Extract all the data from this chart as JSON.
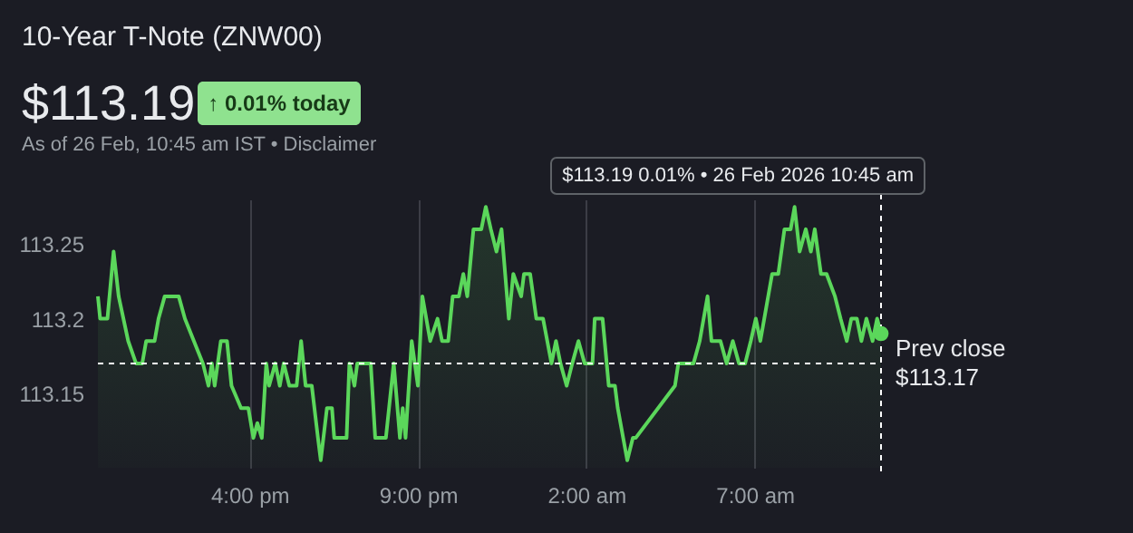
{
  "chart_data": {
    "type": "area",
    "title": "10-Year T-Note (ZNW00)",
    "subtitle": "$113.19",
    "color": "#5bd75b",
    "annotations": [
      "↑ 0.01% today",
      "As of 26 Feb, 10:45 am IST • Disclaimer",
      "$113.19 0.01% • 26 Feb 2026 10:45 am"
    ],
    "x": [
      "2026-02-25T11:30",
      "2026-02-25T11:34",
      "2026-02-25T11:47",
      "2026-02-25T11:58",
      "2026-02-25T12:07",
      "2026-02-25T12:24",
      "2026-02-25T12:38",
      "2026-02-25T12:49",
      "2026-02-25T12:56",
      "2026-02-25T13:11",
      "2026-02-25T13:18",
      "2026-02-25T13:29",
      "2026-02-25T13:54",
      "2026-02-25T14:05",
      "2026-02-25T14:21",
      "2026-02-25T14:37",
      "2026-02-25T14:47",
      "2026-02-25T14:53",
      "2026-02-25T14:58",
      "2026-02-25T15:09",
      "2026-02-25T15:20",
      "2026-02-25T15:28",
      "2026-02-25T15:45",
      "2026-02-25T15:58",
      "2026-02-25T16:07",
      "2026-02-25T16:14",
      "2026-02-25T16:22",
      "2026-02-25T16:30",
      "2026-02-25T16:35",
      "2026-02-25T16:46",
      "2026-02-25T16:54",
      "2026-02-25T17:01",
      "2026-02-25T17:11",
      "2026-02-25T17:24",
      "2026-02-25T17:32",
      "2026-02-25T17:40",
      "2026-02-25T17:51",
      "2026-02-25T18:02",
      "2026-02-25T18:07",
      "2026-02-25T18:18",
      "2026-02-25T18:27",
      "2026-02-25T18:31",
      "2026-02-25T18:53",
      "2026-02-25T18:58",
      "2026-02-25T19:07",
      "2026-02-25T19:12",
      "2026-02-25T19:23",
      "2026-02-25T19:36",
      "2026-02-25T19:44",
      "2026-02-25T20:03",
      "2026-02-25T20:17",
      "2026-02-25T20:28",
      "2026-02-25T20:33",
      "2026-02-25T20:38",
      "2026-02-25T20:49",
      "2026-02-25T21:00",
      "2026-02-25T21:08",
      "2026-02-25T21:22",
      "2026-02-25T21:35",
      "2026-02-25T21:43",
      "2026-02-25T21:54",
      "2026-02-25T22:02",
      "2026-02-25T22:13",
      "2026-02-25T22:21",
      "2026-02-25T22:28",
      "2026-02-25T22:39",
      "2026-02-25T22:53",
      "2026-02-25T23:01",
      "2026-02-25T23:10",
      "2026-02-25T23:20",
      "2026-02-25T23:29",
      "2026-02-25T23:42",
      "2026-02-25T23:50",
      "2026-02-26T00:04",
      "2026-02-26T00:09",
      "2026-02-26T00:20",
      "2026-02-26T00:31",
      "2026-02-26T00:43",
      "2026-02-26T00:58",
      "2026-02-26T01:06",
      "2026-02-26T01:14",
      "2026-02-26T01:25",
      "2026-02-26T01:35",
      "2026-02-26T01:46",
      "2026-02-26T01:57",
      "2026-02-26T02:11",
      "2026-02-26T02:15",
      "2026-02-26T02:29",
      "2026-02-26T02:40",
      "2026-02-26T02:51",
      "2026-02-26T02:56",
      "2026-02-26T03:13",
      "2026-02-26T03:23",
      "2026-02-26T03:28",
      "2026-02-26T04:38",
      "2026-02-26T04:44",
      "2026-02-26T05:11",
      "2026-02-26T05:22",
      "2026-02-26T05:36",
      "2026-02-26T05:43",
      "2026-02-26T05:59",
      "2026-02-26T06:10",
      "2026-02-26T06:21",
      "2026-02-26T06:32",
      "2026-02-26T06:43",
      "2026-02-26T06:53",
      "2026-02-26T07:02",
      "2026-02-26T07:10",
      "2026-02-26T07:17",
      "2026-02-26T07:31",
      "2026-02-26T07:42",
      "2026-02-26T07:53",
      "2026-02-26T08:04",
      "2026-02-26T08:11",
      "2026-02-26T08:20",
      "2026-02-26T08:31",
      "2026-02-26T08:40",
      "2026-02-26T08:47",
      "2026-02-26T08:58",
      "2026-02-26T09:08",
      "2026-02-26T09:23",
      "2026-02-26T09:33",
      "2026-02-26T09:44",
      "2026-02-26T09:52",
      "2026-02-26T10:02",
      "2026-02-26T10:10",
      "2026-02-26T10:19",
      "2026-02-26T10:30",
      "2026-02-26T10:38",
      "2026-02-26T10:45"
    ],
    "values": [
      113.215,
      113.2,
      113.2,
      113.245,
      113.215,
      113.185,
      113.17,
      113.17,
      113.185,
      113.185,
      113.2,
      113.215,
      113.215,
      113.2,
      113.185,
      113.17,
      113.155,
      113.17,
      113.155,
      113.185,
      113.185,
      113.155,
      113.14,
      113.14,
      113.12,
      113.13,
      113.12,
      113.17,
      113.155,
      113.17,
      113.155,
      113.17,
      113.155,
      113.155,
      113.185,
      113.155,
      113.155,
      113.12,
      113.105,
      113.14,
      113.14,
      113.12,
      113.12,
      113.17,
      113.155,
      113.17,
      113.17,
      113.17,
      113.12,
      113.12,
      113.17,
      113.12,
      113.14,
      113.12,
      113.185,
      113.155,
      113.215,
      113.185,
      113.2,
      113.185,
      113.185,
      113.215,
      113.215,
      113.23,
      113.215,
      113.26,
      113.26,
      113.275,
      113.26,
      113.245,
      113.26,
      113.2,
      113.23,
      113.215,
      113.23,
      113.23,
      113.2,
      113.2,
      113.17,
      113.185,
      113.17,
      113.155,
      113.17,
      113.185,
      113.17,
      113.17,
      113.2,
      113.2,
      113.155,
      113.155,
      113.14,
      113.105,
      113.12,
      113.12,
      113.155,
      113.17,
      113.17,
      113.185,
      113.215,
      113.185,
      113.185,
      113.17,
      113.185,
      113.17,
      113.17,
      113.185,
      113.2,
      113.185,
      113.2,
      113.23,
      113.23,
      113.26,
      113.26,
      113.275,
      113.245,
      113.26,
      113.245,
      113.26,
      113.23,
      113.23,
      113.215,
      113.2,
      113.185,
      113.2,
      113.2,
      113.185,
      113.2,
      113.185,
      113.2,
      113.19
    ],
    "xlim": [
      "2026-02-25T11:30",
      "2026-02-26T10:45"
    ],
    "ylim": [
      113.1,
      113.28
    ],
    "xticks": [
      {
        "value": "2026-02-25T16:00",
        "label": "4:00 pm"
      },
      {
        "value": "2026-02-25T21:00",
        "label": "9:00 pm"
      },
      {
        "value": "2026-02-26T02:00",
        "label": "2:00 am"
      },
      {
        "value": "2026-02-26T07:00",
        "label": "7:00 am"
      }
    ],
    "yticks": [
      113.15,
      113.2,
      113.25
    ],
    "ref_lines": [
      {
        "axis": "y",
        "value": 113.17,
        "label": "Prev close\n$113.17",
        "color": "#ffffff",
        "line_style": "dashed"
      }
    ],
    "grid": "x"
  }
}
